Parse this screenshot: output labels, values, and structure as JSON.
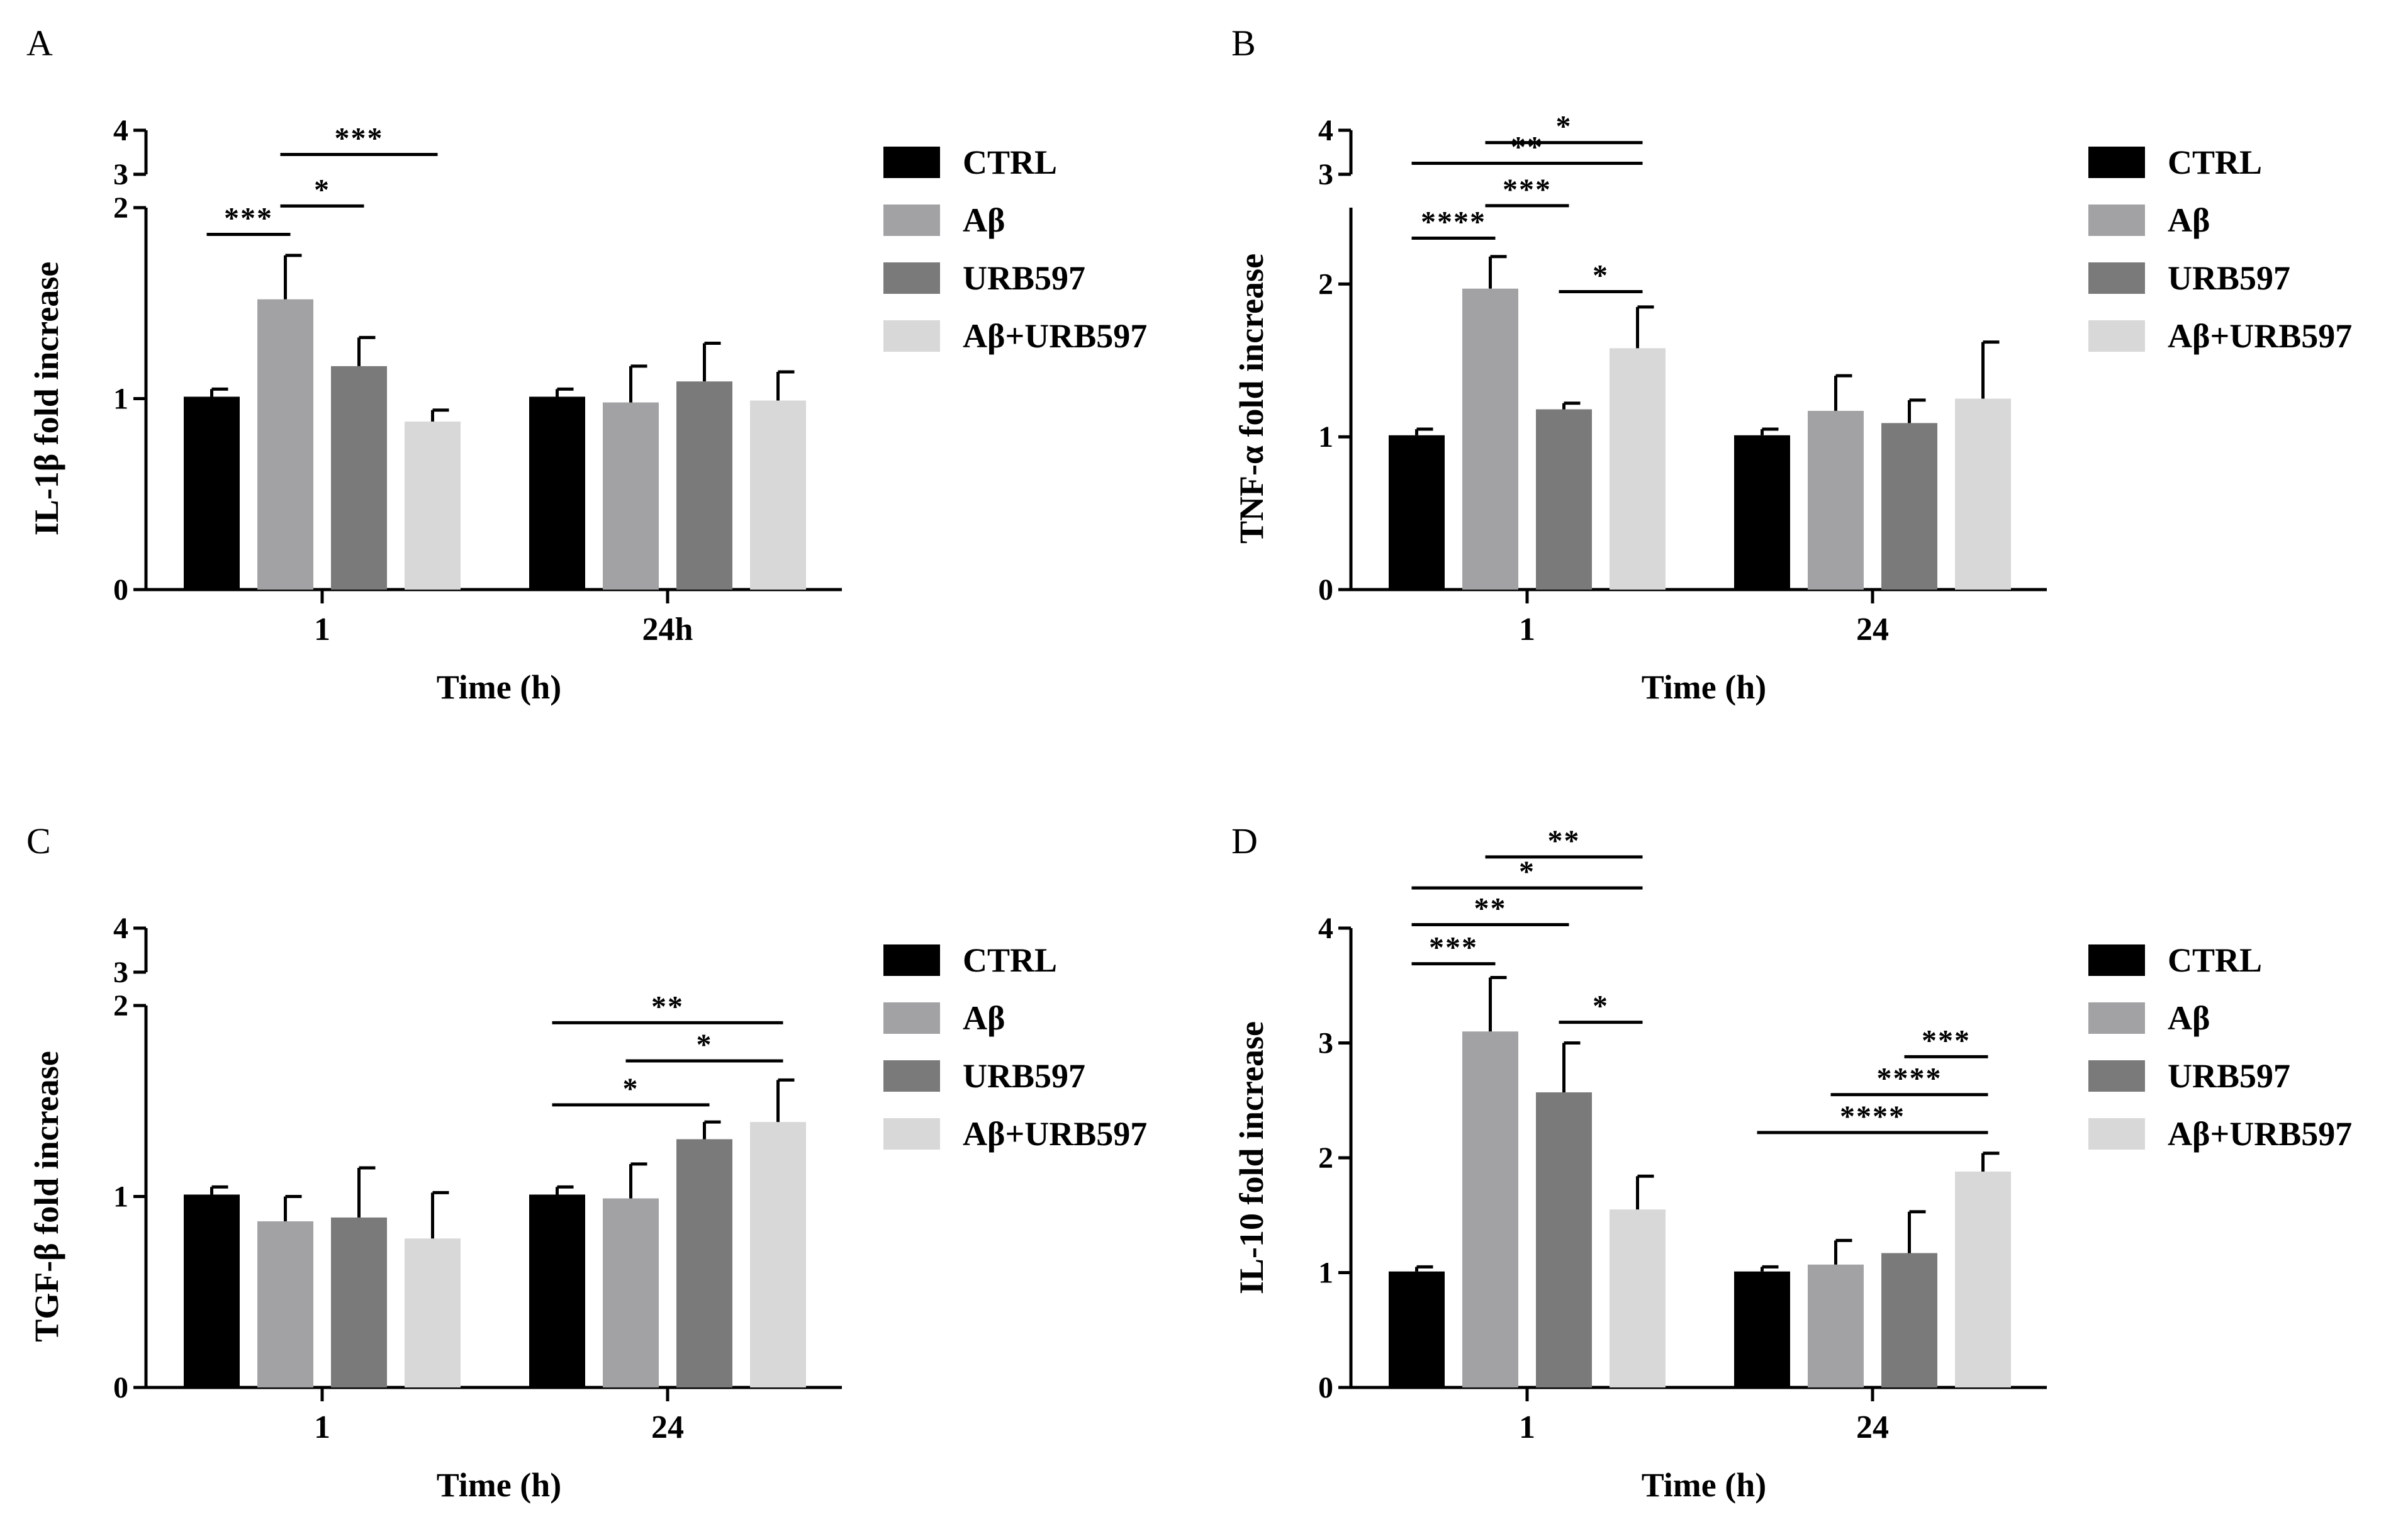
{
  "chart_data": [
    {
      "panel": "A",
      "type": "bar",
      "title": "",
      "xlabel": "Time (h)",
      "ylabel": "IL-1β fold increase",
      "categories": [
        "1",
        "24h"
      ],
      "ylim": [
        0,
        4
      ],
      "axis_break": [
        2,
        3
      ],
      "yticks": [
        "0",
        "1",
        "2",
        "3",
        "4"
      ],
      "series": [
        {
          "name": "CTRL",
          "values": [
            1.01,
            1.01
          ],
          "errors": [
            0.04,
            0.04
          ]
        },
        {
          "name": "Aβ",
          "values": [
            1.52,
            0.98
          ],
          "errors": [
            0.23,
            0.19
          ]
        },
        {
          "name": "URB597",
          "values": [
            1.17,
            1.09
          ],
          "errors": [
            0.15,
            0.2
          ]
        },
        {
          "name": "Aβ+URB597",
          "values": [
            0.88,
            0.99
          ],
          "errors": [
            0.06,
            0.15
          ]
        }
      ],
      "significance": [
        {
          "group": 0,
          "from": 0,
          "to": 1,
          "label": "***",
          "y": 1.86
        },
        {
          "group": 0,
          "from": 1,
          "to": 2,
          "label": "*",
          "y": 2.05
        },
        {
          "group": 0,
          "from": 1,
          "to": 3,
          "label": "***",
          "y": 3.45
        }
      ]
    },
    {
      "panel": "B",
      "type": "bar",
      "title": "",
      "xlabel": "Time (h)",
      "ylabel": "TNF-α fold increase",
      "categories": [
        "1",
        "24"
      ],
      "ylim": [
        0,
        4
      ],
      "axis_break": [
        2.5,
        3
      ],
      "yticks": [
        "0",
        "1",
        "2",
        "3",
        "4"
      ],
      "series": [
        {
          "name": "CTRL",
          "values": [
            1.01,
            1.01
          ],
          "errors": [
            0.04,
            0.04
          ]
        },
        {
          "name": "Aβ",
          "values": [
            1.97,
            1.17
          ],
          "errors": [
            0.21,
            0.23
          ]
        },
        {
          "name": "URB597",
          "values": [
            1.18,
            1.09
          ],
          "errors": [
            0.04,
            0.15
          ]
        },
        {
          "name": "Aβ+URB597",
          "values": [
            1.58,
            1.25
          ],
          "errors": [
            0.27,
            0.37
          ]
        }
      ],
      "significance": [
        {
          "group": 0,
          "from": 0,
          "to": 1,
          "label": "****",
          "y": 2.3
        },
        {
          "group": 0,
          "from": 1,
          "to": 2,
          "label": "***",
          "y": 2.53
        },
        {
          "group": 0,
          "from": 2,
          "to": 3,
          "label": "*",
          "y": 1.95
        },
        {
          "group": 0,
          "from": 0,
          "to": 3,
          "label": "**",
          "y": 3.25
        },
        {
          "group": 0,
          "from": 1,
          "to": 3,
          "label": "*",
          "y": 3.72
        }
      ]
    },
    {
      "panel": "C",
      "type": "bar",
      "title": "",
      "xlabel": "Time (h)",
      "ylabel": "TGF-β fold increase",
      "categories": [
        "1",
        "24"
      ],
      "ylim": [
        0,
        4
      ],
      "axis_break": [
        2,
        3
      ],
      "yticks": [
        "0",
        "1",
        "2",
        "3",
        "4"
      ],
      "series": [
        {
          "name": "CTRL",
          "values": [
            1.01,
            1.01
          ],
          "errors": [
            0.04,
            0.04
          ]
        },
        {
          "name": "Aβ",
          "values": [
            0.87,
            0.99
          ],
          "errors": [
            0.13,
            0.18
          ]
        },
        {
          "name": "URB597",
          "values": [
            0.89,
            1.3
          ],
          "errors": [
            0.26,
            0.09
          ]
        },
        {
          "name": "Aβ+URB597",
          "values": [
            0.78,
            1.39
          ],
          "errors": [
            0.24,
            0.22
          ]
        }
      ],
      "significance": [
        {
          "group": 1,
          "from": 0,
          "to": 2,
          "label": "*",
          "y": 1.48
        },
        {
          "group": 1,
          "from": 1,
          "to": 3,
          "label": "*",
          "y": 1.71
        },
        {
          "group": 1,
          "from": 0,
          "to": 3,
          "label": "**",
          "y": 1.91
        }
      ]
    },
    {
      "panel": "D",
      "type": "bar",
      "title": "",
      "xlabel": "Time (h)",
      "ylabel": "IL-10 fold increase",
      "categories": [
        "1",
        "24"
      ],
      "ylim": [
        0,
        4
      ],
      "yticks": [
        "0",
        "1",
        "2",
        "3",
        "4"
      ],
      "series": [
        {
          "name": "CTRL",
          "values": [
            1.01,
            1.01
          ],
          "errors": [
            0.04,
            0.04
          ]
        },
        {
          "name": "Aβ",
          "values": [
            3.1,
            1.07
          ],
          "errors": [
            0.47,
            0.21
          ]
        },
        {
          "name": "URB597",
          "values": [
            2.57,
            1.17
          ],
          "errors": [
            0.43,
            0.36
          ]
        },
        {
          "name": "Aβ+URB597",
          "values": [
            1.55,
            1.88
          ],
          "errors": [
            0.29,
            0.16
          ]
        }
      ],
      "significance": [
        {
          "group": 0,
          "from": 0,
          "to": 1,
          "label": "***",
          "y": 3.69
        },
        {
          "group": 0,
          "from": 2,
          "to": 3,
          "label": "*",
          "y": 3.18
        },
        {
          "group": 0,
          "from": 0,
          "to": 2,
          "label": "**",
          "y": 4.03
        },
        {
          "group": 0,
          "from": 0,
          "to": 3,
          "label": "*",
          "y": 4.35
        },
        {
          "group": 0,
          "from": 1,
          "to": 3,
          "label": "**",
          "y": 4.62
        },
        {
          "group": 1,
          "from": 0,
          "to": 3,
          "label": "****",
          "y": 2.22
        },
        {
          "group": 1,
          "from": 1,
          "to": 3,
          "label": "****",
          "y": 2.55
        },
        {
          "group": 1,
          "from": 2,
          "to": 3,
          "label": "***",
          "y": 2.88
        }
      ]
    }
  ],
  "legend": {
    "items": [
      {
        "label": "CTRL",
        "color": "#000000"
      },
      {
        "label": "Aβ",
        "color": "#a2a2a5"
      },
      {
        "label": "URB597",
        "color": "#7a7a7a"
      },
      {
        "label": "Aβ+URB597",
        "color": "#d8d8d8"
      }
    ]
  }
}
